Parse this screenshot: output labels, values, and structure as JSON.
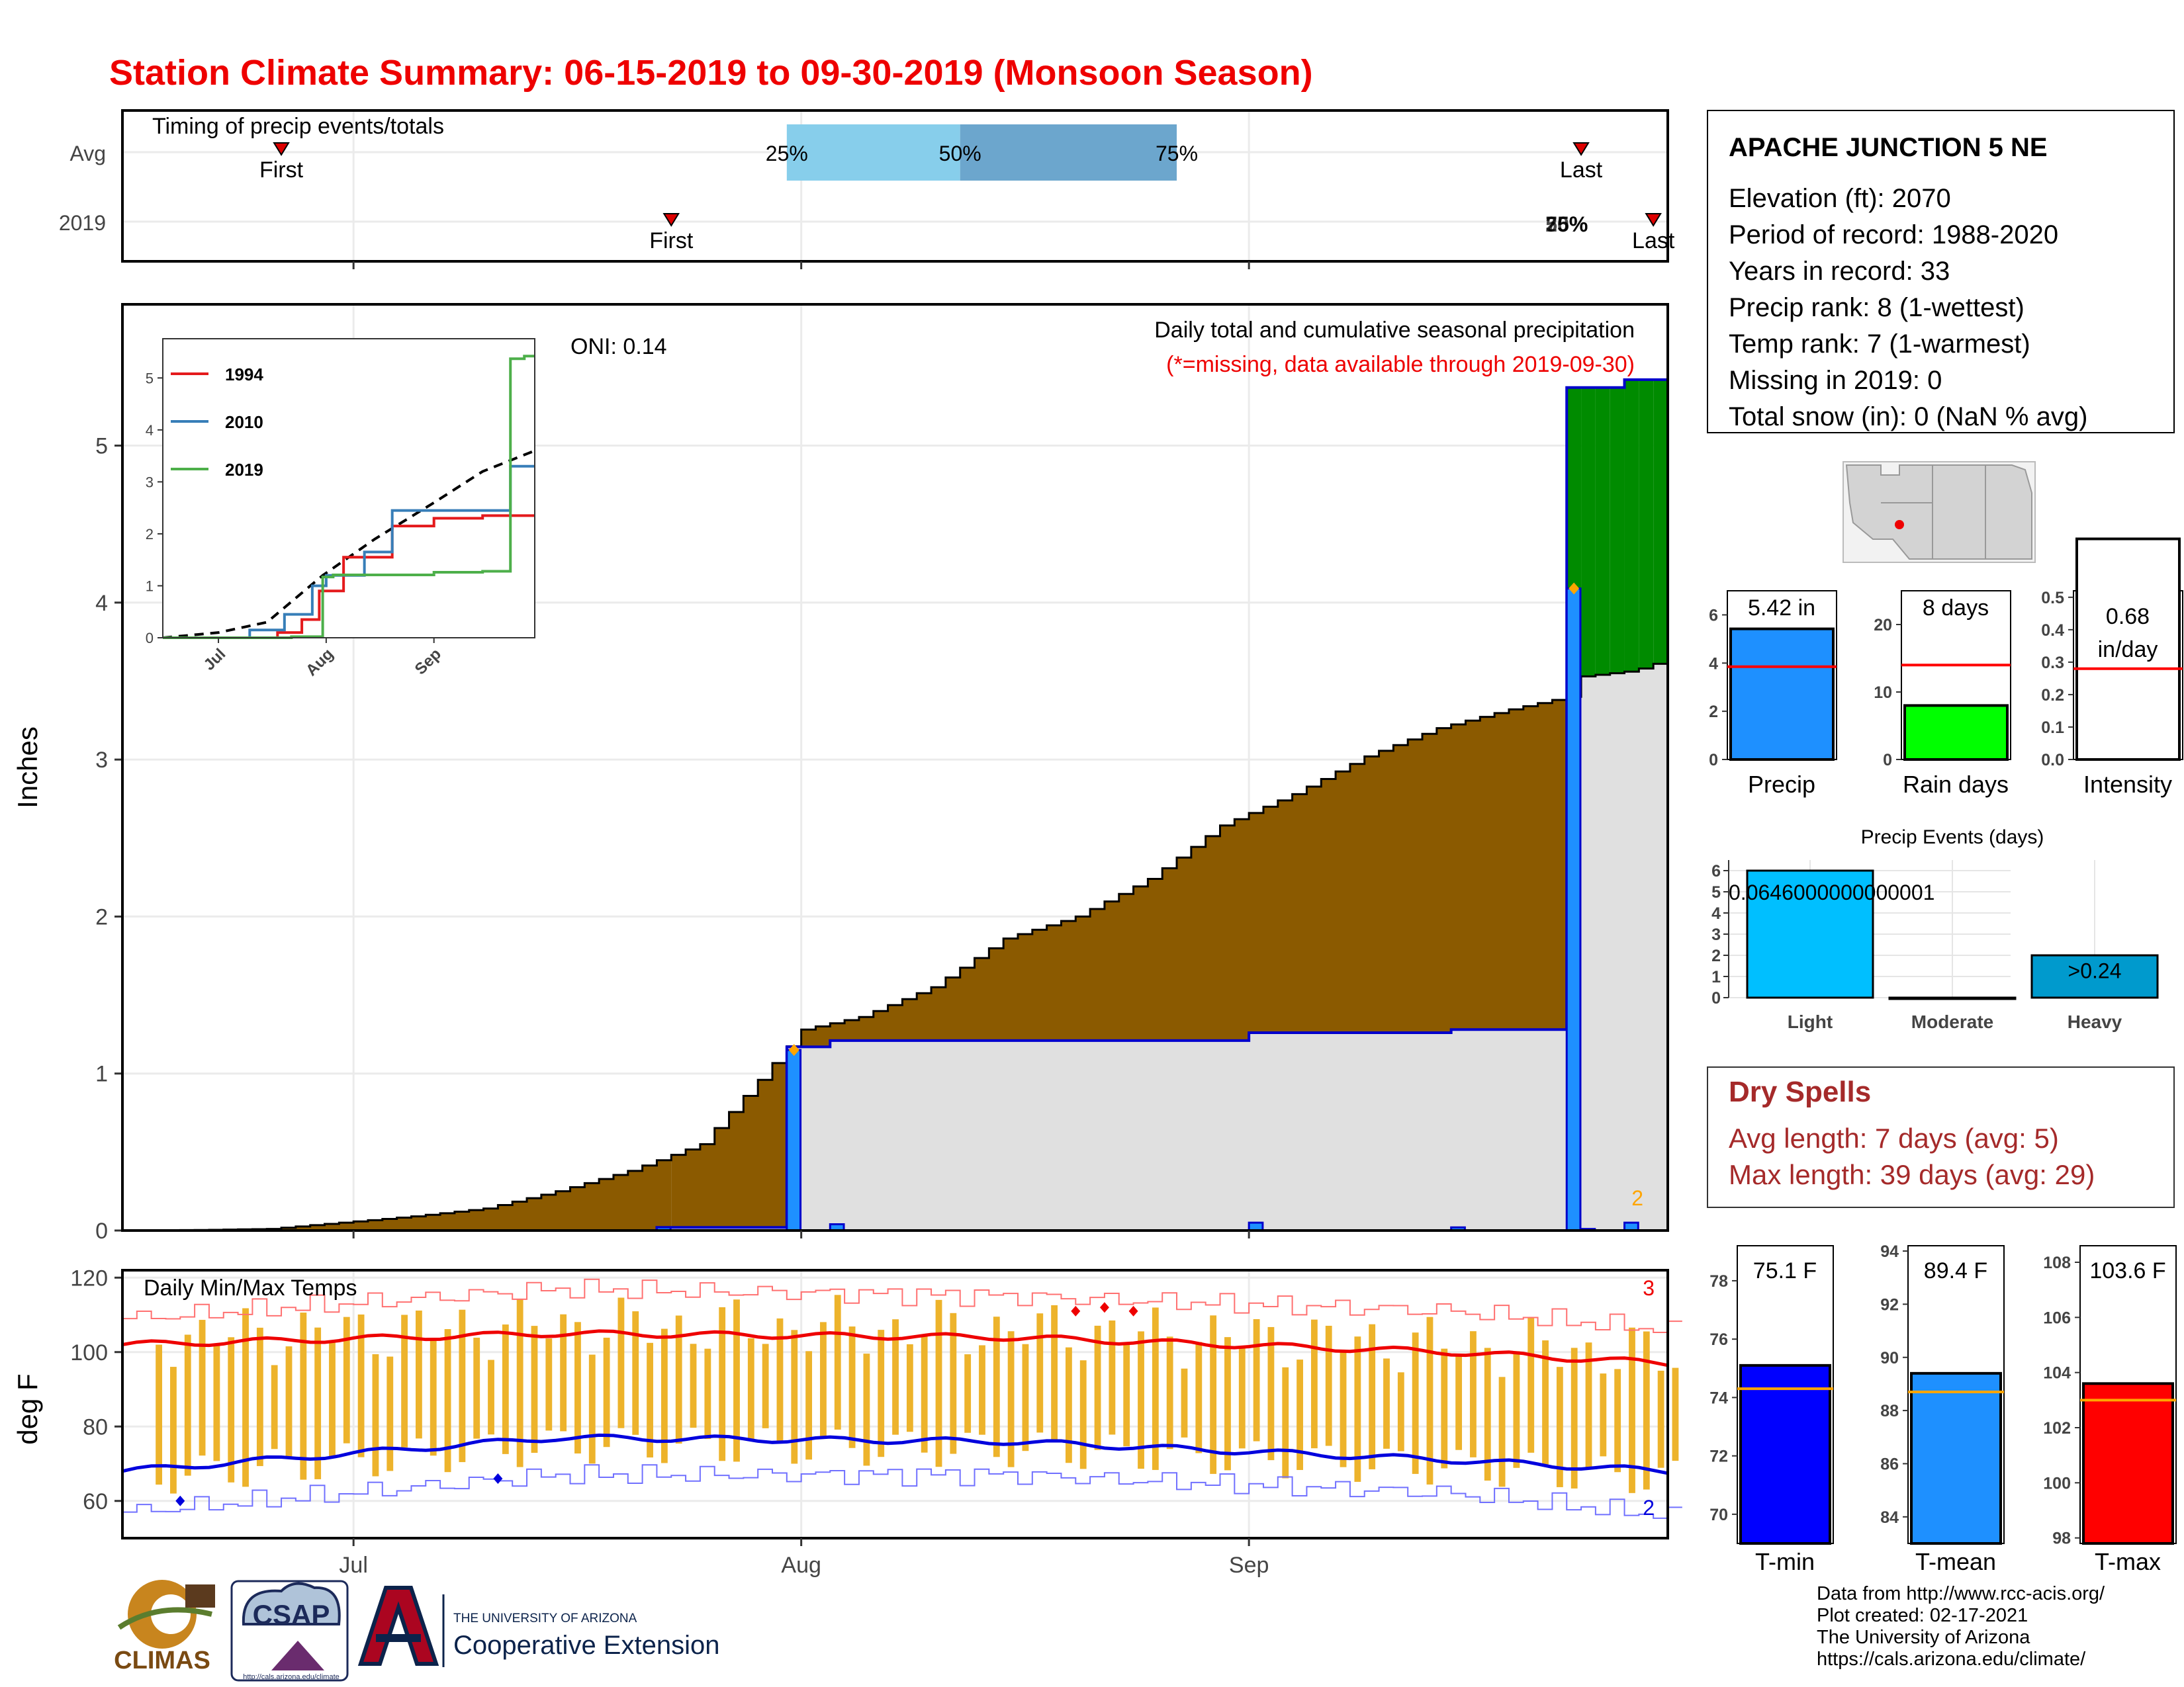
{
  "title": "Station Climate Summary: 06-15-2019 to 09-30-2019 (Monsoon Season)",
  "station": {
    "name": "APACHE JUNCTION 5 NE",
    "lines": [
      "Elevation (ft): 2070",
      "Period of record: 1988-2020",
      "Years in record: 33",
      "Precip rank: 8 (1-wettest)",
      "Temp rank: 7 (1-warmest)",
      "Missing in 2019: 0",
      "Total snow (in): 0 (NaN % avg)"
    ]
  },
  "timing": {
    "title": "Timing of precip events/totals",
    "rows": [
      "Avg",
      "2019"
    ],
    "pct_labels": [
      "25%",
      "50%",
      "75%"
    ],
    "first_label": "First",
    "last_label": "Last",
    "overlap_2019": [
      "25%",
      "50%",
      "75%"
    ],
    "colors": {
      "q1": "#87CEEB",
      "q2": "#6CA6CD",
      "marker": "#DD0000"
    },
    "avg": {
      "first": "2019-06-26",
      "p25": "2019-07-31",
      "p50": "2019-08-12",
      "p75": "2019-08-27",
      "last": "2019-09-24"
    },
    "y2019": {
      "first": "2019-07-23",
      "p25": "2019-09-23",
      "p50": "2019-09-23",
      "p75": "2019-09-23",
      "last": "2019-09-29"
    }
  },
  "main": {
    "ylabel": "Inches",
    "legend_title": "Daily total and cumulative seasonal precipitation",
    "legend_note": "(*=missing, data available through 2019-09-30)",
    "oni": "ONI: 0.14",
    "corner_count": "2",
    "colors": {
      "avg_fill": "#8B5A00",
      "deficit_fill": "#E0E0E0",
      "surplus_fill": "#008B00",
      "daily": "#1E90FF",
      "daily_outline": "#0000CC",
      "marker": "#FFA500"
    }
  },
  "temps": {
    "title": "Daily Min/Max Temps",
    "ylabel": "deg F",
    "count_max": "3",
    "count_min": "2",
    "colors": {
      "range_bar": "#EDB32B",
      "avg_max": "#EE0000",
      "avg_min": "#0000DD",
      "record_max": "#FF7070",
      "record_min": "#7070FF"
    }
  },
  "x_axis": {
    "labels": [
      "Jul",
      "Aug",
      "Sep"
    ]
  },
  "inset": {
    "x_labels": [
      "Jul",
      "Aug",
      "Sep"
    ],
    "legend": [
      {
        "name": "1994",
        "color": "#E41A1C"
      },
      {
        "name": "2010",
        "color": "#377EB8"
      },
      {
        "name": "2019",
        "color": "#4DAF4A"
      }
    ]
  },
  "bars": [
    {
      "value_label": "5.42 in",
      "label": "Precip",
      "color": "#1E90FF"
    },
    {
      "value_label": "8 days",
      "label": "Rain days",
      "color": "#00FF00"
    },
    {
      "value_label": "0.68",
      "value_label2": "in/day",
      "label": "Intensity",
      "color": "#FFFFFF"
    }
  ],
  "events": {
    "title": "Precip Events (days)",
    "labels": [
      "Light",
      "Moderate",
      "Heavy"
    ],
    "value_text": "0.0646000000000001",
    "heavy_label": ">0.24",
    "colors": [
      "#00BFFF",
      "#FFFFFF",
      "#009ACD"
    ]
  },
  "dry_spells": {
    "title": "Dry Spells",
    "lines": [
      "Avg length: 7 days (avg: 5)",
      "Max length: 39 days (avg: 29)"
    ]
  },
  "temp_bars": [
    {
      "value_label": "75.1 F",
      "label": "T-min",
      "color": "#0000FF"
    },
    {
      "value_label": "89.4 F",
      "label": "T-mean",
      "color": "#1E90FF"
    },
    {
      "value_label": "103.6 F",
      "label": "T-max",
      "color": "#FF0000"
    }
  ],
  "footer": {
    "lines": [
      "Data from http://www.rcc-acis.org/",
      "Plot created: 02-17-2021",
      "The University of Arizona",
      "https://cals.arizona.edu/climate/"
    ]
  },
  "logos": {
    "climas": "CLIMAS",
    "csap": "CSAP",
    "csap_url": "http://cals.arizona.edu/climate",
    "ua_small": "THE UNIVERSITY OF ARIZONA",
    "ua_big": "Cooperative Extension"
  },
  "chart_data": [
    {
      "id": "cumulative_precip",
      "type": "area",
      "x_range": [
        "2019-06-15",
        "2019-09-30"
      ],
      "ylim": [
        0,
        5.9
      ],
      "y_ticks": [
        0,
        1,
        2,
        3,
        4,
        5
      ],
      "avg_cumulative": {
        "x": [
          "2019-06-15",
          "2019-06-20",
          "2019-06-25",
          "2019-06-30",
          "2019-07-05",
          "2019-07-10",
          "2019-07-15",
          "2019-07-20",
          "2019-07-25",
          "2019-07-29",
          "2019-08-01",
          "2019-08-05",
          "2019-08-10",
          "2019-08-15",
          "2019-08-20",
          "2019-08-25",
          "2019-08-30",
          "2019-09-04",
          "2019-09-09",
          "2019-09-14",
          "2019-09-19",
          "2019-09-23"
        ],
        "y": [
          0,
          0.003,
          0.01,
          0.05,
          0.09,
          0.14,
          0.25,
          0.38,
          0.55,
          0.96,
          1.28,
          1.36,
          1.55,
          1.86,
          2.0,
          2.24,
          2.58,
          2.78,
          3.02,
          3.2,
          3.32,
          3.4
        ]
      },
      "cumulative_2019": {
        "x": [
          "2019-06-15",
          "2019-07-22",
          "2019-07-31",
          "2019-08-03",
          "2019-09-01",
          "2019-09-15",
          "2019-09-23",
          "2019-09-25",
          "2019-09-27",
          "2019-09-30"
        ],
        "y": [
          0,
          0.02,
          1.17,
          1.21,
          1.26,
          1.28,
          5.37,
          5.37,
          5.42,
          5.42
        ]
      },
      "daily_2019": {
        "x": [
          "2019-07-22",
          "2019-07-31",
          "2019-08-03",
          "2019-09-01",
          "2019-09-15",
          "2019-09-23",
          "2019-09-24",
          "2019-09-27"
        ],
        "y": [
          0.02,
          1.15,
          0.04,
          0.05,
          0.02,
          4.09,
          0.01,
          0.05
        ]
      }
    },
    {
      "id": "inset_cumulative",
      "type": "line",
      "ylim": [
        0,
        5.5
      ],
      "y_ticks": [
        0,
        1,
        2,
        3,
        4,
        5
      ],
      "series": [
        {
          "name": "avg",
          "x": [
            "2019-06-15",
            "2019-07-01",
            "2019-07-15",
            "2019-07-31",
            "2019-08-15",
            "2019-09-01",
            "2019-09-15",
            "2019-09-30"
          ],
          "y": [
            0,
            0.1,
            0.3,
            1.2,
            1.9,
            2.6,
            3.2,
            3.6
          ]
        },
        {
          "name": "1994",
          "x": [
            "2019-06-15",
            "2019-07-18",
            "2019-07-25",
            "2019-07-30",
            "2019-08-06",
            "2019-08-20",
            "2019-09-01",
            "2019-09-15",
            "2019-09-30"
          ],
          "y": [
            0,
            0.1,
            0.35,
            0.9,
            1.55,
            2.15,
            2.3,
            2.35,
            2.35
          ]
        },
        {
          "name": "2010",
          "x": [
            "2019-06-15",
            "2019-07-10",
            "2019-07-20",
            "2019-07-28",
            "2019-08-01",
            "2019-08-12",
            "2019-08-20",
            "2019-09-23",
            "2019-09-30"
          ],
          "y": [
            0,
            0.15,
            0.45,
            1.0,
            1.2,
            1.65,
            2.45,
            3.3,
            3.3
          ]
        },
        {
          "name": "2019",
          "x": [
            "2019-06-15",
            "2019-07-22",
            "2019-07-31",
            "2019-08-03",
            "2019-09-01",
            "2019-09-15",
            "2019-09-23",
            "2019-09-27",
            "2019-09-30"
          ],
          "y": [
            0,
            0.02,
            1.17,
            1.21,
            1.26,
            1.28,
            5.37,
            5.42,
            5.42
          ]
        }
      ]
    },
    {
      "id": "temps",
      "type": "line",
      "ylim": [
        50,
        122
      ],
      "y_ticks": [
        60,
        80,
        100,
        120
      ],
      "avg_max": {
        "x": [
          "2019-06-15",
          "2019-07-15",
          "2019-08-15",
          "2019-09-15",
          "2019-09-30"
        ],
        "y": [
          102,
          105,
          104,
          100,
          97
        ]
      },
      "avg_min": {
        "x": [
          "2019-06-15",
          "2019-07-15",
          "2019-08-15",
          "2019-09-15",
          "2019-09-30"
        ],
        "y": [
          68,
          77,
          76,
          71,
          68
        ]
      },
      "record_max": {
        "x": [
          "2019-06-15",
          "2019-07-15",
          "2019-08-15",
          "2019-09-15",
          "2019-09-30"
        ],
        "y": [
          109,
          117,
          115,
          111,
          106
        ]
      },
      "record_min": {
        "x": [
          "2019-06-15",
          "2019-07-15",
          "2019-08-15",
          "2019-09-15",
          "2019-09-30"
        ],
        "y": [
          57,
          67,
          67,
          62,
          56
        ]
      },
      "record_max_markers": {
        "x": [
          "2019-08-20",
          "2019-08-22",
          "2019-08-24"
        ],
        "y": [
          111,
          112,
          111
        ]
      },
      "record_min_markers": {
        "x": [
          "2019-06-19",
          "2019-07-11"
        ],
        "y": [
          60,
          66
        ]
      }
    },
    {
      "id": "season_bars",
      "type": "bar",
      "categories": [
        "Precip",
        "Rain days",
        "Intensity"
      ],
      "values": [
        5.42,
        8,
        0.68
      ],
      "averages": [
        3.85,
        14,
        0.28
      ],
      "ylims": [
        [
          0,
          7
        ],
        [
          0,
          25
        ],
        [
          0,
          0.52
        ]
      ],
      "y_ticks": [
        [
          0,
          2,
          4,
          6
        ],
        [
          0,
          10,
          20
        ],
        [
          0.0,
          0.1,
          0.2,
          0.3,
          0.4,
          0.5
        ]
      ]
    },
    {
      "id": "precip_events",
      "type": "bar",
      "categories": [
        "Light",
        "Moderate",
        "Heavy"
      ],
      "values": [
        6,
        0,
        2
      ],
      "ylim": [
        0,
        6.5
      ],
      "y_ticks": [
        0,
        1,
        2,
        3,
        4,
        5,
        6
      ]
    },
    {
      "id": "temp_bars",
      "type": "bar",
      "categories": [
        "T-min",
        "T-mean",
        "T-max"
      ],
      "values": [
        75.1,
        89.4,
        103.6
      ],
      "averages": [
        74.3,
        88.7,
        103.0
      ],
      "ylims": [
        [
          69,
          79.2
        ],
        [
          83,
          94.2
        ],
        [
          97.8,
          108.6
        ]
      ],
      "y_ticks": [
        [
          70,
          72,
          74,
          76,
          78
        ],
        [
          84,
          86,
          88,
          90,
          92,
          94
        ],
        [
          98,
          100,
          102,
          104,
          106,
          108
        ]
      ]
    }
  ]
}
